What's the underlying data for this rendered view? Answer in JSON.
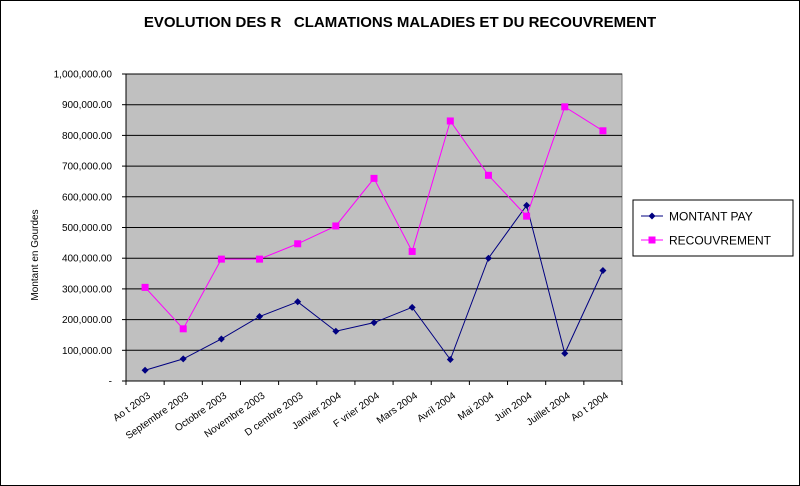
{
  "chart_data": {
    "type": "line",
    "title": "EVOLUTION DES R   CLAMATIONS MALADIES ET DU RECOUVREMENT",
    "xlabel": "",
    "ylabel": "Montant en Gourdes",
    "ylim": [
      0,
      1000000
    ],
    "y_tick_labels": [
      "-",
      "100,000.00",
      "200,000.00",
      "300,000.00",
      "400,000.00",
      "500,000.00",
      "600,000.00",
      "700,000.00",
      "800,000.00",
      "900,000.00",
      "1,000,000.00"
    ],
    "grid": true,
    "legend_position": "right",
    "categories": [
      "Ao t 2003",
      "Septembre 2003",
      "Octobre 2003",
      "Novembre 2003",
      "D cembre 2003",
      "Janvier 2004",
      "F vrier 2004",
      "Mars 2004",
      "Avril 2004",
      "Mai 2004",
      "Juin 2004",
      "Juillet 2004",
      "Ao t 2004"
    ],
    "series": [
      {
        "name": "MONTANT PAY",
        "color": "#000080",
        "marker": "diamond",
        "values": [
          35000,
          72000,
          137000,
          210000,
          258000,
          162000,
          190000,
          240000,
          70000,
          400000,
          572000,
          90000,
          360000
        ]
      },
      {
        "name": "RECOUVREMENT",
        "color": "#FF00FF",
        "marker": "square",
        "values": [
          305000,
          170000,
          397000,
          397000,
          447000,
          505000,
          660000,
          422000,
          847000,
          670000,
          537000,
          893000,
          815000
        ]
      }
    ]
  },
  "colors": {
    "plot_background": "#C0C0C0",
    "grid": "#000000"
  }
}
